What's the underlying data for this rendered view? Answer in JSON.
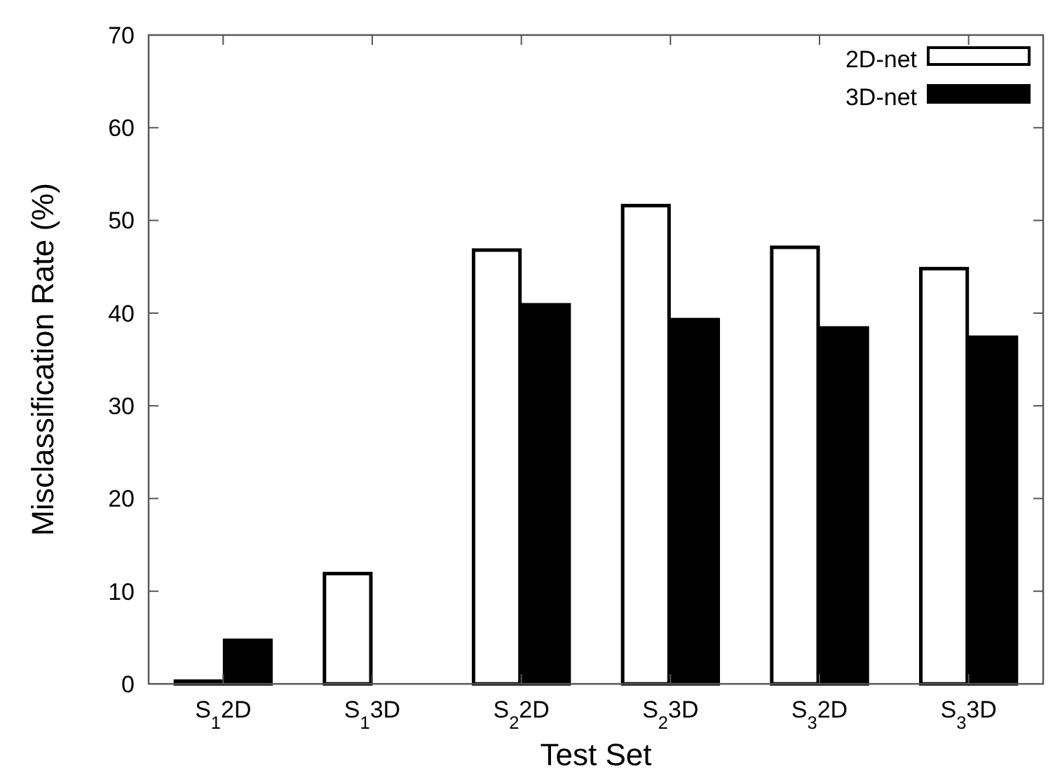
{
  "chart_data": {
    "type": "bar",
    "xlabel": "Test Set",
    "ylabel": "Misclassification Rate (%)",
    "categories": [
      "S$_{1}$2D",
      "S$_{1}$3D",
      "S$_{2}$2D",
      "S$_{2}$3D",
      "S$_{3}$2D",
      "S$_{3}$3D"
    ],
    "series": [
      {
        "name": "2D-net",
        "color": "#ffffff",
        "values": [
          0.3,
          11.9,
          46.8,
          51.6,
          47.1,
          44.8
        ]
      },
      {
        "name": "3D-net",
        "color": "#000000",
        "values": [
          4.7,
          0,
          40.9,
          39.3,
          38.4,
          37.4
        ]
      }
    ],
    "ylim": [
      0,
      70
    ],
    "yticks": [
      0,
      10,
      20,
      30,
      40,
      50,
      60,
      70
    ],
    "grid": false,
    "legend": "top right"
  }
}
